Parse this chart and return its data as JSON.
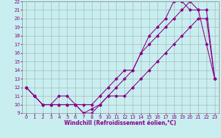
{
  "xlabel": "Windchill (Refroidissement éolien,°C)",
  "bg_color": "#c8eef0",
  "line_color": "#880088",
  "xlim": [
    -0.5,
    23.5
  ],
  "ylim": [
    9,
    22
  ],
  "xticks": [
    0,
    1,
    2,
    3,
    4,
    5,
    6,
    7,
    8,
    9,
    10,
    11,
    12,
    13,
    14,
    15,
    16,
    17,
    18,
    19,
    20,
    21,
    22,
    23
  ],
  "yticks": [
    9,
    10,
    11,
    12,
    13,
    14,
    15,
    16,
    17,
    18,
    19,
    20,
    21,
    22
  ],
  "line1_x": [
    0,
    1,
    2,
    3,
    4,
    5,
    6,
    7,
    8,
    9,
    10,
    11,
    12,
    13,
    14,
    15,
    16,
    17,
    18,
    19,
    20,
    21,
    22,
    23
  ],
  "line1_y": [
    12,
    11,
    10,
    10,
    10,
    10,
    10,
    9,
    9.5,
    10,
    11,
    11,
    11,
    12,
    13,
    14,
    15,
    16,
    17,
    18,
    19,
    20,
    20,
    13
  ],
  "line2_x": [
    0,
    1,
    2,
    3,
    4,
    5,
    6,
    7,
    8,
    9,
    10,
    11,
    12,
    13,
    14,
    15,
    16,
    17,
    18,
    19,
    20,
    21,
    22,
    23
  ],
  "line2_y": [
    12,
    11,
    10,
    10,
    11,
    11,
    10,
    10,
    10,
    11,
    12,
    13,
    14,
    14,
    16,
    17,
    18,
    19,
    20,
    21,
    22,
    21,
    21,
    13
  ],
  "line3_x": [
    0,
    1,
    2,
    3,
    4,
    5,
    6,
    7,
    8,
    9,
    10,
    11,
    12,
    13,
    14,
    15,
    16,
    17,
    18,
    19,
    20,
    21,
    22,
    23
  ],
  "line3_y": [
    12,
    11,
    10,
    10,
    10,
    10,
    10,
    9,
    9,
    10,
    11,
    12,
    13,
    14,
    16,
    18,
    19,
    20,
    22,
    22,
    21,
    21,
    17,
    13
  ],
  "grid_color": "#999999",
  "marker": "D",
  "markersize": 1.8,
  "linewidth": 0.8,
  "xlabel_fontsize": 5.5,
  "tick_fontsize": 5.0
}
